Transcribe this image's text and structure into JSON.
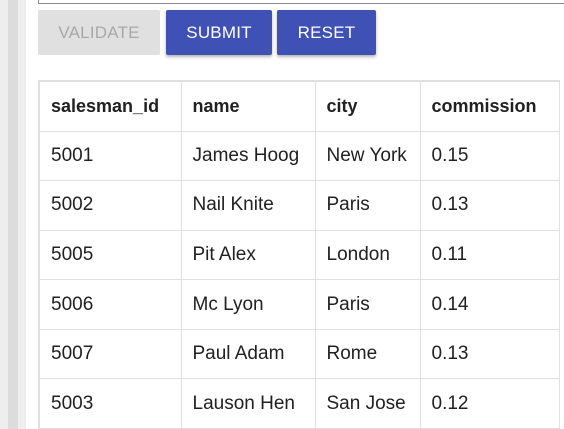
{
  "toolbar": {
    "validate_label": "VALIDATE",
    "submit_label": "SUBMIT",
    "reset_label": "RESET"
  },
  "table": {
    "columns": [
      "salesman_id",
      "name",
      "city",
      "commission"
    ],
    "rows": [
      [
        "5001",
        "James Hoog",
        "New York",
        "0.15"
      ],
      [
        "5002",
        "Nail Knite",
        "Paris",
        "0.13"
      ],
      [
        "5005",
        "Pit Alex",
        "London",
        "0.11"
      ],
      [
        "5006",
        "Mc Lyon",
        "Paris",
        "0.14"
      ],
      [
        "5007",
        "Paul Adam",
        "Rome",
        "0.13"
      ],
      [
        "5003",
        "Lauson Hen",
        "San Jose",
        "0.12"
      ]
    ]
  },
  "colors": {
    "primary": "#3f51b5",
    "disabled_bg": "#e0e0e0",
    "disabled_text": "#a8a8a8",
    "grid": "#e0e0e0"
  }
}
